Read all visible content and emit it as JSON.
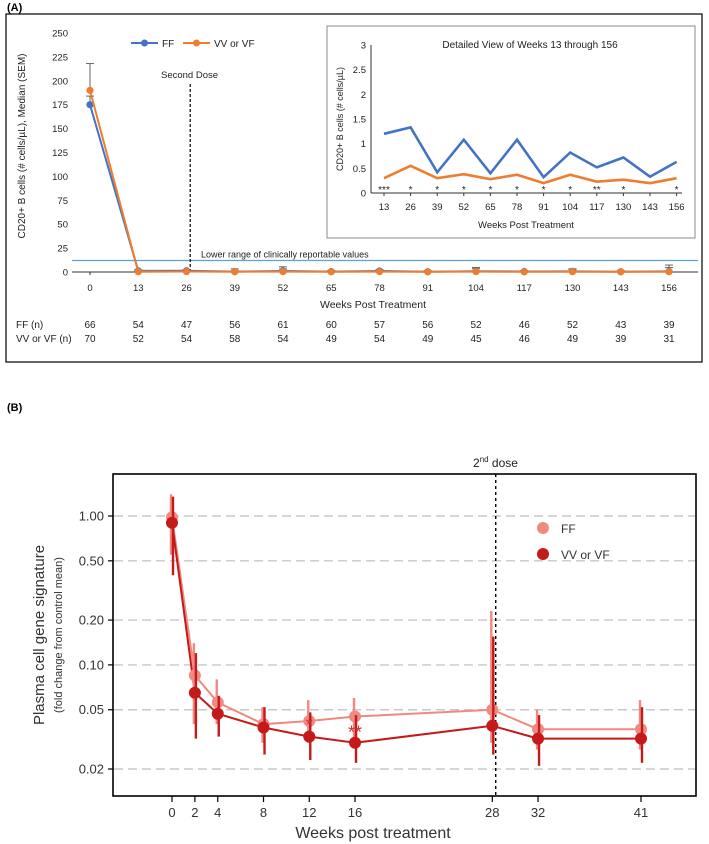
{
  "chart_data": [
    {
      "panel_label": "(A)",
      "type": "line",
      "ylabel": "CD20+ B cells (# cells/µL), Median (SEM)",
      "xlabel": "Weeks Post Treatment",
      "ylim": [
        0,
        250
      ],
      "yticks": [
        0,
        25,
        50,
        75,
        100,
        125,
        150,
        175,
        200,
        225,
        250
      ],
      "categories": [
        "0",
        "13",
        "26",
        "39",
        "52",
        "65",
        "78",
        "91",
        "104",
        "117",
        "130",
        "143",
        "156"
      ],
      "series": [
        {
          "name": "FF",
          "color": "#4472c4",
          "values": [
            175,
            1.2,
            1.3,
            0.4,
            1.1,
            0.4,
            1.1,
            0.3,
            0.8,
            0.5,
            0.7,
            0.3,
            0.6
          ],
          "err_up": [
            9,
            1,
            1,
            1,
            2,
            1,
            1,
            1,
            4,
            1,
            2,
            1,
            4
          ]
        },
        {
          "name": "VV or VF",
          "color": "#ed7d31",
          "values": [
            190,
            0.3,
            0.5,
            0.3,
            0.4,
            0.3,
            0.4,
            0.2,
            0.4,
            0.2,
            0.3,
            0.2,
            0.3
          ],
          "err_up": [
            28,
            1,
            1,
            3,
            5,
            1,
            2,
            1,
            3,
            1,
            3,
            1,
            7
          ]
        }
      ],
      "second_dose_label": "Second Dose",
      "second_dose_at_weeks": 27,
      "reference_line_value": 12,
      "reference_line_label": "Lower range of clinically reportable values",
      "n_table": [
        {
          "label": "FF (n)",
          "values": [
            "66",
            "54",
            "47",
            "56",
            "61",
            "60",
            "57",
            "56",
            "52",
            "46",
            "52",
            "43",
            "39"
          ]
        },
        {
          "label": "VV or VF (n)",
          "values": [
            "70",
            "52",
            "54",
            "58",
            "54",
            "49",
            "54",
            "49",
            "45",
            "46",
            "49",
            "39",
            "31"
          ]
        }
      ],
      "inset": {
        "title": "Detailed View of Weeks 13 through 156",
        "ylabel": "CD20+ B cells (# cells/µL)",
        "xlabel": "Weeks Post Treatment",
        "ylim": [
          0,
          3
        ],
        "yticks": [
          "0",
          "0.5",
          "1",
          "1.5",
          "2",
          "2.5",
          "3"
        ],
        "categories": [
          "13",
          "26",
          "39",
          "52",
          "65",
          "78",
          "91",
          "104",
          "117",
          "130",
          "143",
          "156"
        ],
        "series": [
          {
            "name": "FF",
            "values": [
              1.2,
              1.33,
              0.42,
              1.08,
              0.4,
              1.08,
              0.32,
              0.82,
              0.52,
              0.72,
              0.33,
              0.63
            ]
          },
          {
            "name": "VV or VF",
            "values": [
              0.3,
              0.55,
              0.3,
              0.38,
              0.28,
              0.37,
              0.2,
              0.37,
              0.23,
              0.27,
              0.2,
              0.3
            ]
          }
        ],
        "significance": [
          "***",
          "*",
          "*",
          "*",
          "*",
          "*",
          "*",
          "*",
          "**",
          "*",
          "",
          "*"
        ]
      }
    },
    {
      "panel_label": "(B)",
      "type": "line",
      "scale": "log",
      "ylabel": "Plasma cell gene signature",
      "ylabel_sub": "(fold change from control mean)",
      "xlabel": "Weeks post treatment",
      "yticks": [
        "1.00",
        "0.50",
        "0.20",
        "0.10",
        "0.05",
        "0.02"
      ],
      "ytick_values": [
        1.0,
        0.5,
        0.2,
        0.1,
        0.05,
        0.02
      ],
      "x": [
        0,
        2,
        4,
        8,
        12,
        16,
        28,
        32,
        41
      ],
      "xlim": [
        -1,
        44
      ],
      "ylim_log": [
        0.018,
        1.8
      ],
      "series": [
        {
          "name": "FF",
          "color": "#f08a80",
          "values": [
            0.98,
            0.085,
            0.056,
            0.04,
            0.042,
            0.045,
            0.05,
            0.037,
            0.037
          ],
          "err_low": [
            0.55,
            0.04,
            0.04,
            0.03,
            0.03,
            0.03,
            0.03,
            0.027,
            0.027
          ],
          "err_high": [
            1.4,
            0.14,
            0.08,
            0.052,
            0.058,
            0.06,
            0.23,
            0.05,
            0.058
          ]
        },
        {
          "name": "VV or VF",
          "color": "#c41a1a",
          "values": [
            0.9,
            0.065,
            0.047,
            0.038,
            0.033,
            0.03,
            0.039,
            0.032,
            0.032
          ],
          "err_low": [
            0.4,
            0.032,
            0.033,
            0.025,
            0.023,
            0.022,
            0.025,
            0.021,
            0.022
          ],
          "err_high": [
            1.35,
            0.12,
            0.062,
            0.052,
            0.048,
            0.046,
            0.155,
            0.046,
            0.052
          ]
        }
      ],
      "second_dose_label_main": "2",
      "second_dose_label_sup": "nd",
      "second_dose_label_rest": " dose",
      "second_dose_at_weeks": 28.3,
      "significance": [
        {
          "x": 12,
          "label": "*"
        },
        {
          "x": 16,
          "label": "**"
        }
      ]
    }
  ]
}
